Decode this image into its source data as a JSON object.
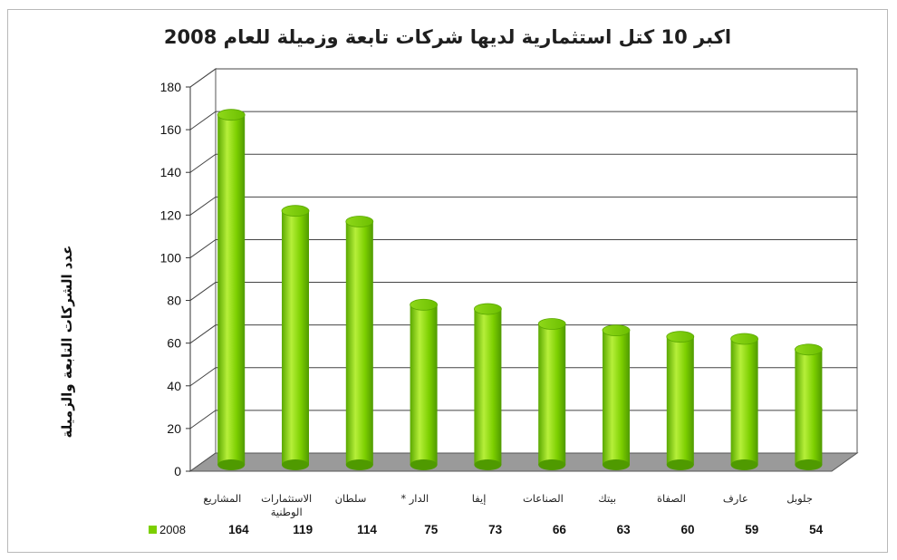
{
  "chart_data": {
    "type": "bar",
    "title": "اكبر 10 كتل استثمارية لديها شركات تابعة وزميلة للعام 2008",
    "ylabel": "عدد الشركات التابعة والزميلة",
    "xlabel": "",
    "ylim": [
      0,
      180
    ],
    "yticks": [
      0,
      20,
      40,
      60,
      80,
      100,
      120,
      140,
      160,
      180
    ],
    "grid": true,
    "style": "3d-cylinder",
    "colors": {
      "bar": "#7ccf00",
      "bar_light": "#b6ef3a",
      "bar_dark": "#4f9a00",
      "floor": "#9a9a9a"
    },
    "categories": [
      "المشاريع",
      "الاستثمارات الوطنية",
      "سلطان",
      "الدار *",
      "إيفا",
      "الصناعات",
      "بيتك",
      "الصفاة",
      "عارف",
      "جلوبل"
    ],
    "series": [
      {
        "name": "2008",
        "values": [
          164,
          119,
          114,
          75,
          73,
          66,
          63,
          60,
          59,
          54
        ]
      }
    ],
    "data_table": true
  }
}
